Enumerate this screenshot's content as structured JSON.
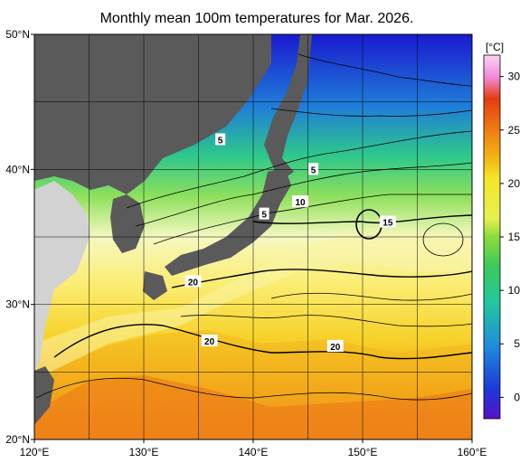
{
  "title": "Monthly mean 100m temperatures for Mar. 2026.",
  "map": {
    "lon_range": [
      120,
      160
    ],
    "lat_range": [
      20,
      50
    ],
    "lon_ticks": [
      "120°E",
      "130°E",
      "140°E",
      "150°E",
      "160°E"
    ],
    "lat_ticks": [
      "50°N",
      "40°N",
      "30°N",
      "20°N"
    ],
    "grid_lons": [
      125,
      130,
      135,
      140,
      145,
      150,
      155
    ],
    "grid_lats": [
      25,
      30,
      35,
      40,
      45
    ],
    "land_color": "#5a5a5a",
    "land_outside_color": "#d2d2d2",
    "contour_labels": [
      {
        "text": "5",
        "lon": 137,
        "lat": 42.2
      },
      {
        "text": "5",
        "lon": 145.5,
        "lat": 40
      },
      {
        "text": "10",
        "lon": 144.3,
        "lat": 37.6
      },
      {
        "text": "5",
        "lon": 141,
        "lat": 36.7
      },
      {
        "text": "15",
        "lon": 152.3,
        "lat": 36.1
      },
      {
        "text": "20",
        "lon": 134.5,
        "lat": 31.7
      },
      {
        "text": "20",
        "lon": 136,
        "lat": 27.3
      },
      {
        "text": "20",
        "lon": 147.5,
        "lat": 26.9
      }
    ]
  },
  "colorbar": {
    "unit": "[°C]",
    "ticks": [
      "30",
      "25",
      "20",
      "15",
      "10",
      "5",
      "0"
    ],
    "tick_values": [
      30,
      25,
      20,
      15,
      10,
      5,
      0
    ],
    "range": [
      -2,
      32
    ],
    "colors": [
      "#5a10c8",
      "#1c38d8",
      "#1e8cdc",
      "#22c8a0",
      "#3ec85a",
      "#8cdc3c",
      "#e6f050",
      "#f5e628",
      "#f2b414",
      "#ee7814",
      "#e63c0f",
      "#f08cdc",
      "#ffd2f0"
    ]
  }
}
